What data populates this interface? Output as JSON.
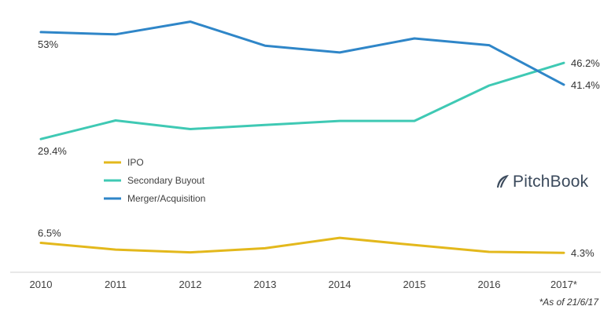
{
  "chart_data": {
    "type": "line",
    "categories": [
      "2010",
      "2011",
      "2012",
      "2013",
      "2014",
      "2015",
      "2016",
      "2017*"
    ],
    "series": [
      {
        "name": "IPO",
        "color": "#e3b81c",
        "values": [
          6.5,
          5.0,
          4.4,
          5.3,
          7.6,
          6.0,
          4.5,
          4.3
        ]
      },
      {
        "name": "Secondary Buyout",
        "color": "#3fc9b4",
        "values": [
          29.4,
          33.5,
          31.6,
          32.5,
          33.4,
          33.4,
          41.2,
          46.2
        ]
      },
      {
        "name": "Merger/Acquisition",
        "color": "#2f86c8",
        "values": [
          53.0,
          52.5,
          55.3,
          50.0,
          48.5,
          51.6,
          50.1,
          41.4
        ]
      }
    ],
    "data_labels": [
      {
        "series": 2,
        "index": 0,
        "text": "53%"
      },
      {
        "series": 1,
        "index": 0,
        "text": "29.4%"
      },
      {
        "series": 0,
        "index": 0,
        "text": "6.5%"
      },
      {
        "series": 1,
        "index": 7,
        "text": "46.2%"
      },
      {
        "series": 2,
        "index": 7,
        "text": "41.4%"
      },
      {
        "series": 0,
        "index": 7,
        "text": "4.3%"
      }
    ],
    "legend_position": "middle-left",
    "grid": false,
    "ylim": [
      0,
      58
    ]
  },
  "brand": {
    "name": "PitchBook",
    "icon": "feather-icon",
    "color": "#3b4a5c"
  },
  "footnote": "*As of 21/6/17"
}
